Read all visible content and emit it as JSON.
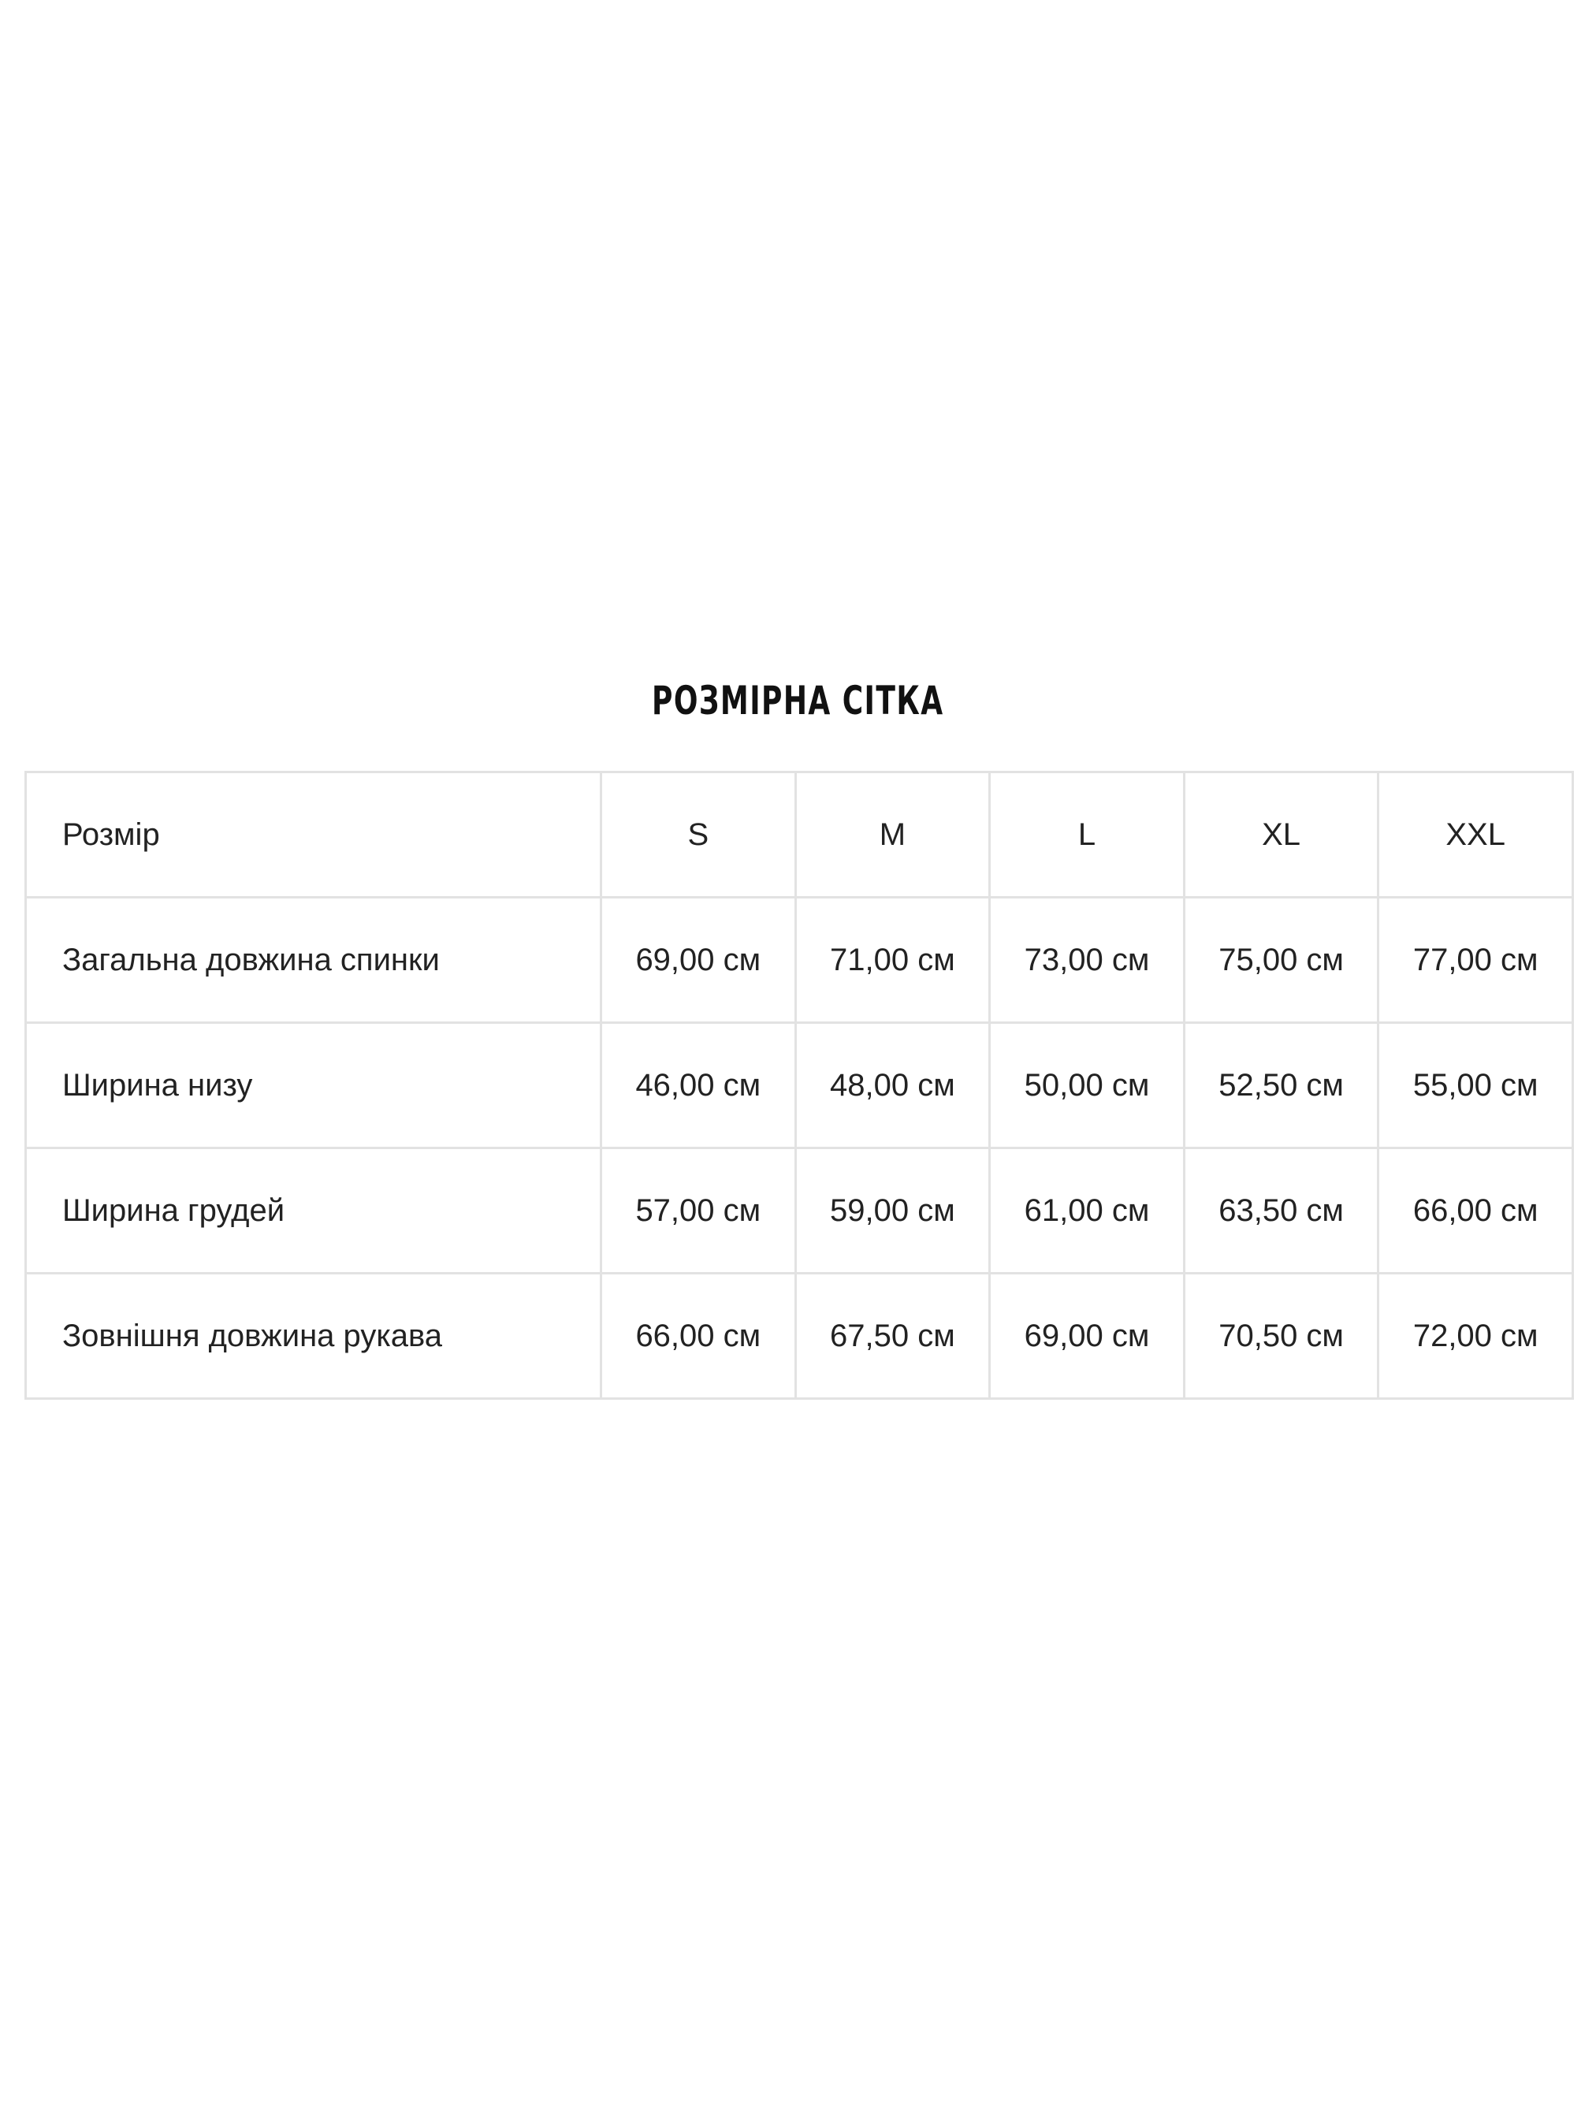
{
  "title": "РОЗМІРНА СІТКА",
  "table": {
    "header": [
      "Розмір",
      "S",
      "M",
      "L",
      "XL",
      "XXL"
    ],
    "rows": [
      [
        "Загальна довжина спинки",
        "69,00 см",
        "71,00 см",
        "73,00 см",
        "75,00 см",
        "77,00 см"
      ],
      [
        "Ширина низу",
        "46,00 см",
        "48,00 см",
        "50,00 см",
        "52,50 см",
        "55,00 см"
      ],
      [
        "Ширина грудей",
        "57,00 см",
        "59,00 см",
        "61,00 см",
        "63,50 см",
        "66,00 см"
      ],
      [
        "Зовнішня довжина рукава",
        "66,00 см",
        "67,50 см",
        "69,00 см",
        "70,50 см",
        "72,00 см"
      ]
    ]
  }
}
